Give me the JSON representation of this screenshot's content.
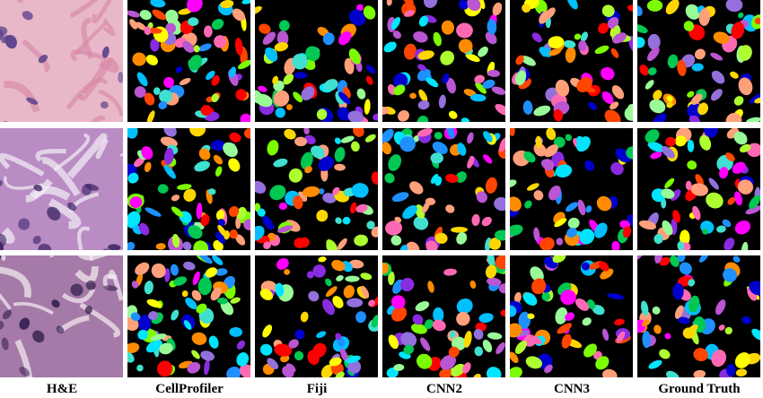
{
  "columns": [
    {
      "key": "he",
      "label": "H&E",
      "kind": "stain"
    },
    {
      "key": "cellprofiler",
      "label": "CellProfiler",
      "kind": "mask"
    },
    {
      "key": "fiji",
      "label": "Fiji",
      "kind": "mask"
    },
    {
      "key": "cnn2",
      "label": "CNN2",
      "kind": "mask"
    },
    {
      "key": "cnn3",
      "label": "CNN3",
      "kind": "mask"
    },
    {
      "key": "ground_truth",
      "label": "Ground Truth",
      "kind": "mask"
    }
  ],
  "rows": [
    {
      "key": "row1",
      "he_colors": {
        "bg": "#e8b8c8",
        "fiber": "#d98aa8",
        "nucleus": "#5a3f8c"
      }
    },
    {
      "key": "row2",
      "he_colors": {
        "bg": "#b98cc4",
        "fiber": "#f4eef6",
        "nucleus": "#3b2466"
      }
    },
    {
      "key": "row3",
      "he_colors": {
        "bg": "#a57aa8",
        "fiber": "#f6f0f4",
        "nucleus": "#34204f"
      }
    }
  ],
  "mask_palette": [
    "#ff0000",
    "#ff8c00",
    "#ffff00",
    "#00e5ff",
    "#1e90ff",
    "#0000cd",
    "#8a2be2",
    "#ff00ff",
    "#00c853",
    "#7cfc00",
    "#ff69b4",
    "#40e0d0",
    "#ffd700",
    "#9370db",
    "#ff4500",
    "#adff2f",
    "#00bfff",
    "#ba55d3",
    "#98fb98",
    "#ffa07a"
  ],
  "mask_background": "#000000",
  "separator_color": "#ffffff"
}
